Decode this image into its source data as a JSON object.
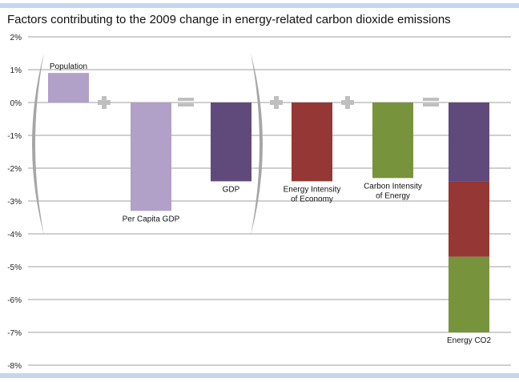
{
  "chart_data": {
    "type": "bar",
    "title": "Factors contributing to the 2009 change in energy-related carbon dioxide emissions",
    "ylim": [
      -8,
      2
    ],
    "yticks": [
      "2%",
      "1%",
      "0%",
      "-1%",
      "-2%",
      "-3%",
      "-4%",
      "-5%",
      "-6%",
      "-7%",
      "-8%"
    ],
    "grid": true,
    "categories": [
      "Population",
      "Per Capita GDP",
      "GDP",
      "Energy Intensity of Economy",
      "Carbon Intensity of Energy",
      "Energy CO2"
    ],
    "bars": [
      {
        "label": [
          "Population"
        ],
        "segments": [
          {
            "value": 0.9,
            "color": "#b1a0c7"
          }
        ]
      },
      {
        "label": [
          "Per Capita GDP"
        ],
        "segments": [
          {
            "value": -3.3,
            "color": "#b1a0c7"
          }
        ]
      },
      {
        "label": [
          "GDP"
        ],
        "segments": [
          {
            "value": -2.4,
            "color": "#604a7b"
          }
        ]
      },
      {
        "label": [
          "Energy Intensity",
          "of Economy"
        ],
        "segments": [
          {
            "value": -2.4,
            "color": "#953735"
          }
        ]
      },
      {
        "label": [
          "Carbon Intensity",
          "of Energy"
        ],
        "segments": [
          {
            "value": -2.3,
            "color": "#77933c"
          }
        ]
      },
      {
        "label": [
          "Energy CO2"
        ],
        "segments": [
          {
            "value": -2.4,
            "color": "#604a7b"
          },
          {
            "value": -2.3,
            "color": "#953735"
          },
          {
            "value": -2.3,
            "color": "#77933c"
          }
        ]
      }
    ],
    "operators": [
      "+",
      "=",
      "+",
      "+",
      "="
    ]
  }
}
